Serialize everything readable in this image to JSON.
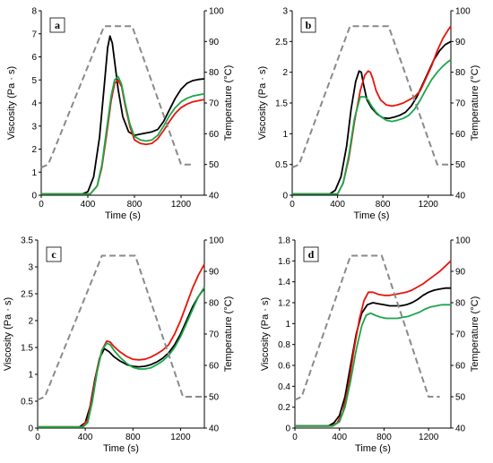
{
  "chart_data": [
    {
      "type": "line",
      "panel_label": "a",
      "xlabel": "Time (s)",
      "ylabel": "Viscosity (Pa · s)",
      "y2label": "Temperature (°C)",
      "xlim": [
        0,
        1400
      ],
      "ylim": [
        0,
        8
      ],
      "y2lim": [
        40,
        100
      ],
      "xticks": [
        "0",
        "400",
        "800",
        "1200"
      ],
      "yticks": [
        "0",
        "1",
        "2",
        "3",
        "4",
        "5",
        "6",
        "7",
        "8"
      ],
      "y2ticks": [
        "40",
        "50",
        "60",
        "70",
        "80",
        "90",
        "100"
      ],
      "series": [
        {
          "color": "#000000",
          "axis": "left",
          "x": [
            0,
            350,
            400,
            450,
            500,
            540,
            570,
            590,
            610,
            630,
            660,
            700,
            750,
            800,
            850,
            900,
            950,
            1000,
            1050,
            1100,
            1150,
            1200,
            1250,
            1300,
            1350,
            1400
          ],
          "y": [
            0.05,
            0.05,
            0.15,
            0.8,
            2.5,
            4.7,
            6.4,
            6.9,
            6.6,
            5.8,
            4.6,
            3.4,
            2.75,
            2.6,
            2.65,
            2.7,
            2.75,
            2.85,
            3.2,
            3.7,
            4.2,
            4.6,
            4.85,
            4.97,
            5.02,
            5.05
          ]
        },
        {
          "color": "#e8140a",
          "axis": "left",
          "x": [
            0,
            420,
            480,
            520,
            560,
            600,
            630,
            660,
            690,
            720,
            760,
            800,
            850,
            900,
            950,
            1000,
            1050,
            1100,
            1150,
            1200,
            1250,
            1300,
            1350,
            1400
          ],
          "y": [
            0.05,
            0.05,
            0.4,
            1.2,
            2.6,
            4.1,
            4.85,
            5.0,
            4.7,
            3.9,
            3.0,
            2.4,
            2.25,
            2.2,
            2.25,
            2.45,
            2.8,
            3.2,
            3.55,
            3.8,
            3.95,
            4.05,
            4.1,
            4.15
          ]
        },
        {
          "color": "#1aa64a",
          "axis": "left",
          "x": [
            0,
            420,
            480,
            520,
            560,
            600,
            630,
            660,
            690,
            720,
            760,
            800,
            850,
            900,
            950,
            1000,
            1050,
            1100,
            1150,
            1200,
            1250,
            1300,
            1350,
            1400
          ],
          "y": [
            0.05,
            0.05,
            0.4,
            1.3,
            2.8,
            4.3,
            5.0,
            5.15,
            4.8,
            4.0,
            3.1,
            2.55,
            2.4,
            2.35,
            2.4,
            2.6,
            3.0,
            3.45,
            3.8,
            4.05,
            4.2,
            4.3,
            4.35,
            4.4
          ]
        },
        {
          "color": "#8a8a8a",
          "axis": "right",
          "dashed": true,
          "x": [
            0,
            60,
            540,
            780,
            1200,
            1300
          ],
          "y": [
            49,
            50,
            95,
            95,
            50,
            50
          ]
        }
      ]
    },
    {
      "type": "line",
      "panel_label": "b",
      "xlabel": "Time (s)",
      "ylabel": "Viscosity (Pa · s)",
      "y2label": "Temperature (°C)",
      "xlim": [
        0,
        1400
      ],
      "ylim": [
        0,
        3
      ],
      "y2lim": [
        40,
        100
      ],
      "xticks": [
        "0",
        "400",
        "800",
        "1200"
      ],
      "yticks": [
        "0",
        "0.5",
        "1",
        "1.5",
        "2",
        "2.5",
        "3"
      ],
      "y2ticks": [
        "40",
        "50",
        "60",
        "70",
        "80",
        "90",
        "100"
      ],
      "series": [
        {
          "color": "#000000",
          "axis": "left",
          "x": [
            0,
            330,
            380,
            430,
            480,
            520,
            560,
            590,
            610,
            630,
            660,
            700,
            750,
            800,
            850,
            900,
            950,
            1000,
            1050,
            1100,
            1150,
            1200,
            1250,
            1300,
            1350,
            1400
          ],
          "y": [
            0.02,
            0.02,
            0.08,
            0.3,
            0.8,
            1.4,
            1.85,
            2.02,
            2.0,
            1.8,
            1.55,
            1.42,
            1.32,
            1.26,
            1.25,
            1.27,
            1.3,
            1.35,
            1.45,
            1.6,
            1.8,
            2.0,
            2.2,
            2.35,
            2.45,
            2.5
          ]
        },
        {
          "color": "#e8140a",
          "axis": "left",
          "x": [
            0,
            400,
            450,
            500,
            550,
            600,
            640,
            670,
            690,
            710,
            740,
            780,
            830,
            880,
            930,
            980,
            1030,
            1080,
            1130,
            1180,
            1230,
            1280,
            1330,
            1380,
            1400
          ],
          "y": [
            0.02,
            0.02,
            0.2,
            0.6,
            1.2,
            1.7,
            1.95,
            2.02,
            2.0,
            1.9,
            1.7,
            1.55,
            1.47,
            1.45,
            1.47,
            1.5,
            1.55,
            1.6,
            1.7,
            1.9,
            2.1,
            2.35,
            2.55,
            2.7,
            2.75
          ]
        },
        {
          "color": "#1aa64a",
          "axis": "left",
          "x": [
            0,
            400,
            450,
            500,
            550,
            600,
            640,
            670,
            700,
            740,
            780,
            830,
            880,
            930,
            980,
            1030,
            1080,
            1130,
            1180,
            1230,
            1280,
            1330,
            1380,
            1400
          ],
          "y": [
            0.02,
            0.02,
            0.2,
            0.65,
            1.25,
            1.6,
            1.6,
            1.55,
            1.45,
            1.35,
            1.28,
            1.22,
            1.2,
            1.22,
            1.25,
            1.3,
            1.4,
            1.55,
            1.72,
            1.88,
            2.0,
            2.1,
            2.18,
            2.2
          ]
        },
        {
          "color": "#8a8a8a",
          "axis": "right",
          "dashed": true,
          "x": [
            0,
            60,
            510,
            850,
            1280,
            1400
          ],
          "y": [
            49,
            50,
            95,
            95,
            50,
            50
          ]
        }
      ]
    },
    {
      "type": "line",
      "panel_label": "c",
      "xlabel": "Time (s)",
      "ylabel": "Viscosity (Pa · s)",
      "y2label": "Temperature (°C)",
      "xlim": [
        0,
        1400
      ],
      "ylim": [
        0,
        3.5
      ],
      "y2lim": [
        40,
        100
      ],
      "xticks": [
        "0",
        "400",
        "800",
        "1200"
      ],
      "yticks": [
        "0",
        "0.5",
        "1",
        "1.5",
        "2",
        "2.5",
        "3",
        "3.5"
      ],
      "y2ticks": [
        "40",
        "50",
        "60",
        "70",
        "80",
        "90",
        "100"
      ],
      "series": [
        {
          "color": "#000000",
          "axis": "left",
          "x": [
            0,
            350,
            400,
            440,
            480,
            520,
            560,
            600,
            640,
            690,
            750,
            800,
            850,
            900,
            950,
            1000,
            1050,
            1100,
            1150,
            1200,
            1250,
            1300,
            1350,
            1400
          ],
          "y": [
            0.02,
            0.02,
            0.1,
            0.4,
            0.9,
            1.3,
            1.48,
            1.42,
            1.33,
            1.25,
            1.18,
            1.15,
            1.14,
            1.15,
            1.18,
            1.23,
            1.3,
            1.4,
            1.55,
            1.75,
            2.0,
            2.25,
            2.45,
            2.6
          ]
        },
        {
          "color": "#e8140a",
          "axis": "left",
          "x": [
            0,
            370,
            420,
            460,
            500,
            540,
            580,
            610,
            640,
            690,
            750,
            800,
            850,
            900,
            950,
            1000,
            1050,
            1100,
            1150,
            1200,
            1250,
            1300,
            1350,
            1400
          ],
          "y": [
            0.02,
            0.02,
            0.15,
            0.6,
            1.1,
            1.45,
            1.62,
            1.6,
            1.52,
            1.42,
            1.33,
            1.28,
            1.27,
            1.28,
            1.32,
            1.38,
            1.45,
            1.55,
            1.75,
            2.0,
            2.3,
            2.6,
            2.85,
            3.05
          ]
        },
        {
          "color": "#1aa64a",
          "axis": "left",
          "x": [
            0,
            380,
            420,
            460,
            500,
            540,
            580,
            610,
            640,
            690,
            750,
            800,
            850,
            900,
            950,
            1000,
            1050,
            1100,
            1150,
            1200,
            1250,
            1300,
            1350,
            1400
          ],
          "y": [
            0.02,
            0.02,
            0.1,
            0.5,
            1.05,
            1.45,
            1.58,
            1.55,
            1.45,
            1.32,
            1.2,
            1.13,
            1.1,
            1.1,
            1.12,
            1.18,
            1.25,
            1.35,
            1.5,
            1.7,
            1.95,
            2.2,
            2.45,
            2.62
          ]
        },
        {
          "color": "#8a8a8a",
          "axis": "right",
          "dashed": true,
          "x": [
            0,
            60,
            540,
            820,
            1220,
            1400
          ],
          "y": [
            49,
            50,
            95,
            95,
            50,
            50
          ]
        }
      ]
    },
    {
      "type": "line",
      "panel_label": "d",
      "xlabel": "Time (s)",
      "ylabel": "Viscosity (Pa · s)",
      "y2label": "Temperature (°C)",
      "xlim": [
        0,
        1400
      ],
      "ylim": [
        0,
        1.8
      ],
      "y2lim": [
        40,
        100
      ],
      "xticks": [
        "0",
        "400",
        "800",
        "1200"
      ],
      "yticks": [
        "0",
        "0.2",
        "0.4",
        "0.6",
        "0.8",
        "1",
        "1.2",
        "1.4",
        "1.6",
        "1.8"
      ],
      "y2ticks": [
        "40",
        "50",
        "60",
        "70",
        "80",
        "90",
        "100"
      ],
      "series": [
        {
          "color": "#000000",
          "axis": "left",
          "x": [
            0,
            300,
            350,
            400,
            450,
            500,
            550,
            600,
            650,
            700,
            750,
            800,
            850,
            900,
            950,
            1000,
            1050,
            1100,
            1150,
            1200,
            1250,
            1300,
            1350,
            1400
          ],
          "y": [
            0.02,
            0.02,
            0.05,
            0.12,
            0.3,
            0.6,
            0.9,
            1.1,
            1.18,
            1.2,
            1.19,
            1.18,
            1.17,
            1.17,
            1.17,
            1.18,
            1.2,
            1.23,
            1.27,
            1.3,
            1.32,
            1.33,
            1.34,
            1.34
          ]
        },
        {
          "color": "#e8140a",
          "axis": "left",
          "x": [
            0,
            330,
            380,
            430,
            480,
            530,
            580,
            620,
            660,
            700,
            750,
            800,
            850,
            900,
            950,
            1000,
            1050,
            1100,
            1150,
            1200,
            1250,
            1300,
            1350,
            1400
          ],
          "y": [
            0.02,
            0.02,
            0.05,
            0.15,
            0.4,
            0.75,
            1.05,
            1.22,
            1.3,
            1.3,
            1.28,
            1.27,
            1.27,
            1.28,
            1.29,
            1.3,
            1.32,
            1.35,
            1.38,
            1.42,
            1.46,
            1.5,
            1.55,
            1.6
          ]
        },
        {
          "color": "#1aa64a",
          "axis": "left",
          "x": [
            0,
            340,
            400,
            450,
            500,
            550,
            600,
            640,
            680,
            720,
            770,
            820,
            870,
            920,
            970,
            1020,
            1070,
            1120,
            1170,
            1220,
            1270,
            1320,
            1370,
            1400
          ],
          "y": [
            0.02,
            0.02,
            0.06,
            0.2,
            0.45,
            0.75,
            0.98,
            1.08,
            1.1,
            1.08,
            1.06,
            1.05,
            1.05,
            1.05,
            1.06,
            1.07,
            1.09,
            1.11,
            1.14,
            1.16,
            1.17,
            1.18,
            1.18,
            1.18
          ]
        },
        {
          "color": "#8a8a8a",
          "axis": "right",
          "dashed": true,
          "x": [
            0,
            60,
            500,
            780,
            1200,
            1300
          ],
          "y": [
            49,
            50,
            95,
            95,
            50,
            50
          ]
        }
      ]
    }
  ]
}
